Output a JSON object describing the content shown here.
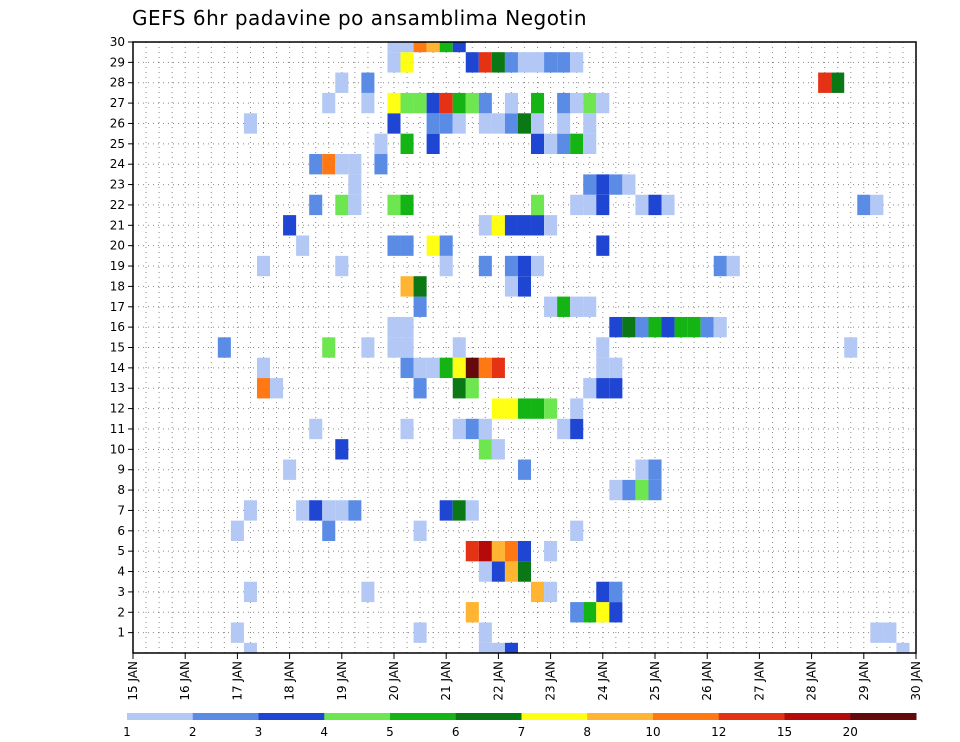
{
  "chart_data": {
    "type": "heatmap",
    "title": "GEFS 6hr padavine po ansamblima Negotin",
    "y_ticks": [
      "1",
      "2",
      "3",
      "4",
      "5",
      "6",
      "7",
      "8",
      "9",
      "10",
      "11",
      "12",
      "13",
      "14",
      "15",
      "16",
      "17",
      "18",
      "19",
      "20",
      "21",
      "22",
      "23",
      "24",
      "25",
      "26",
      "27",
      "28",
      "29",
      "30"
    ],
    "x_ticks": [
      "15 JAN",
      "16 JAN",
      "17 JAN",
      "18 JAN",
      "19 JAN",
      "20 JAN",
      "21 JAN",
      "22 JAN",
      "23 JAN",
      "24 JAN",
      "25 JAN",
      "26 JAN",
      "27 JAN",
      "28 JAN",
      "29 JAN",
      "30 JAN"
    ],
    "x_range_days": [
      15,
      30
    ],
    "y_range": [
      0,
      30
    ],
    "grid": true,
    "colorbar": {
      "labels": [
        "1",
        "2",
        "3",
        "4",
        "5",
        "6",
        "7",
        "8",
        "10",
        "12",
        "15",
        "20"
      ],
      "colors": [
        "#b4c8f5",
        "#5a8ce6",
        "#1e46d2",
        "#6ee650",
        "#14b414",
        "#0a7814",
        "#ffff14",
        "#ffb432",
        "#ff7814",
        "#e63214",
        "#b40a0a",
        "#640a0a"
      ]
    },
    "cells": [
      {
        "m": 1,
        "d": 17.0,
        "c": 1
      },
      {
        "m": 1,
        "d": 20.5,
        "c": 1
      },
      {
        "m": 1,
        "d": 21.75,
        "c": 1
      },
      {
        "m": 1,
        "d": 29.25,
        "c": 1
      },
      {
        "m": 1,
        "d": 29.5,
        "c": 1
      },
      {
        "m": 2,
        "d": 21.5,
        "c": 8
      },
      {
        "m": 2,
        "d": 23.5,
        "c": 2
      },
      {
        "m": 2,
        "d": 23.75,
        "c": 5
      },
      {
        "m": 2,
        "d": 24.0,
        "c": 7
      },
      {
        "m": 2,
        "d": 24.25,
        "c": 3
      },
      {
        "m": 3,
        "d": 17.25,
        "c": 1
      },
      {
        "m": 3,
        "d": 19.5,
        "c": 1
      },
      {
        "m": 3,
        "d": 22.75,
        "c": 8
      },
      {
        "m": 3,
        "d": 23.0,
        "c": 1
      },
      {
        "m": 3,
        "d": 24.0,
        "c": 3
      },
      {
        "m": 3,
        "d": 24.25,
        "c": 2
      },
      {
        "m": 4,
        "d": 21.75,
        "c": 1
      },
      {
        "m": 4,
        "d": 22.0,
        "c": 3
      },
      {
        "m": 4,
        "d": 22.25,
        "c": 8
      },
      {
        "m": 4,
        "d": 22.5,
        "c": 6
      },
      {
        "m": 5,
        "d": 21.5,
        "c": 10
      },
      {
        "m": 5,
        "d": 21.75,
        "c": 11
      },
      {
        "m": 5,
        "d": 22.0,
        "c": 8
      },
      {
        "m": 5,
        "d": 22.25,
        "c": 9
      },
      {
        "m": 5,
        "d": 22.5,
        "c": 3
      },
      {
        "m": 5,
        "d": 23.0,
        "c": 1
      },
      {
        "m": 6,
        "d": 17.0,
        "c": 1
      },
      {
        "m": 6,
        "d": 18.75,
        "c": 2
      },
      {
        "m": 6,
        "d": 20.5,
        "c": 1
      },
      {
        "m": 6,
        "d": 23.5,
        "c": 1
      },
      {
        "m": 7,
        "d": 17.25,
        "c": 1
      },
      {
        "m": 7,
        "d": 18.25,
        "c": 1
      },
      {
        "m": 7,
        "d": 18.5,
        "c": 3
      },
      {
        "m": 7,
        "d": 18.75,
        "c": 1
      },
      {
        "m": 7,
        "d": 19.0,
        "c": 1
      },
      {
        "m": 7,
        "d": 19.25,
        "c": 2
      },
      {
        "m": 7,
        "d": 21.0,
        "c": 3
      },
      {
        "m": 7,
        "d": 21.25,
        "c": 6
      },
      {
        "m": 7,
        "d": 21.5,
        "c": 1
      },
      {
        "m": 8,
        "d": 24.25,
        "c": 1
      },
      {
        "m": 8,
        "d": 24.5,
        "c": 2
      },
      {
        "m": 8,
        "d": 24.75,
        "c": 4
      },
      {
        "m": 8,
        "d": 25.0,
        "c": 2
      },
      {
        "m": 9,
        "d": 18.0,
        "c": 1
      },
      {
        "m": 9,
        "d": 22.5,
        "c": 2
      },
      {
        "m": 9,
        "d": 24.75,
        "c": 1
      },
      {
        "m": 9,
        "d": 25.0,
        "c": 2
      },
      {
        "m": 10,
        "d": 19.0,
        "c": 3
      },
      {
        "m": 10,
        "d": 21.75,
        "c": 4
      },
      {
        "m": 10,
        "d": 22.0,
        "c": 1
      },
      {
        "m": 11,
        "d": 18.5,
        "c": 1
      },
      {
        "m": 11,
        "d": 20.25,
        "c": 1
      },
      {
        "m": 11,
        "d": 21.25,
        "c": 1
      },
      {
        "m": 11,
        "d": 21.5,
        "c": 2
      },
      {
        "m": 11,
        "d": 21.75,
        "c": 1
      },
      {
        "m": 11,
        "d": 23.25,
        "c": 1
      },
      {
        "m": 11,
        "d": 23.5,
        "c": 3
      },
      {
        "m": 12,
        "d": 22.0,
        "c": 7
      },
      {
        "m": 12,
        "d": 22.25,
        "c": 7
      },
      {
        "m": 12,
        "d": 22.5,
        "c": 5
      },
      {
        "m": 12,
        "d": 22.75,
        "c": 5
      },
      {
        "m": 12,
        "d": 23.0,
        "c": 4
      },
      {
        "m": 12,
        "d": 23.5,
        "c": 1
      },
      {
        "m": 13,
        "d": 17.5,
        "c": 9
      },
      {
        "m": 13,
        "d": 17.75,
        "c": 1
      },
      {
        "m": 13,
        "d": 20.5,
        "c": 2
      },
      {
        "m": 13,
        "d": 21.25,
        "c": 6
      },
      {
        "m": 13,
        "d": 21.5,
        "c": 4
      },
      {
        "m": 13,
        "d": 23.75,
        "c": 1
      },
      {
        "m": 13,
        "d": 24.0,
        "c": 3
      },
      {
        "m": 13,
        "d": 24.25,
        "c": 3
      },
      {
        "m": 14,
        "d": 17.5,
        "c": 1
      },
      {
        "m": 14,
        "d": 20.25,
        "c": 2
      },
      {
        "m": 14,
        "d": 20.5,
        "c": 1
      },
      {
        "m": 14,
        "d": 20.75,
        "c": 1
      },
      {
        "m": 14,
        "d": 21.0,
        "c": 5
      },
      {
        "m": 14,
        "d": 21.25,
        "c": 7
      },
      {
        "m": 14,
        "d": 21.5,
        "c": 12
      },
      {
        "m": 14,
        "d": 21.75,
        "c": 9
      },
      {
        "m": 14,
        "d": 22.0,
        "c": 10
      },
      {
        "m": 14,
        "d": 24.0,
        "c": 1
      },
      {
        "m": 14,
        "d": 24.25,
        "c": 1
      },
      {
        "m": 15,
        "d": 16.75,
        "c": 2
      },
      {
        "m": 15,
        "d": 19.5,
        "c": 1
      },
      {
        "m": 15,
        "d": 28.75,
        "c": 1
      },
      {
        "m": 15,
        "d": 18.75,
        "c": 4
      },
      {
        "m": 15,
        "d": 20.0,
        "c": 1
      },
      {
        "m": 15,
        "d": 20.25,
        "c": 1
      },
      {
        "m": 15,
        "d": 21.25,
        "c": 1
      },
      {
        "m": 15,
        "d": 24.0,
        "c": 1
      },
      {
        "m": 16,
        "d": 24.25,
        "c": 3
      },
      {
        "m": 16,
        "d": 24.5,
        "c": 6
      },
      {
        "m": 16,
        "d": 24.75,
        "c": 2
      },
      {
        "m": 16,
        "d": 25.0,
        "c": 5
      },
      {
        "m": 16,
        "d": 25.25,
        "c": 3
      },
      {
        "m": 16,
        "d": 25.5,
        "c": 5
      },
      {
        "m": 16,
        "d": 25.75,
        "c": 5
      },
      {
        "m": 16,
        "d": 26.0,
        "c": 2
      },
      {
        "m": 16,
        "d": 26.25,
        "c": 1
      },
      {
        "m": 16,
        "d": 20.0,
        "c": 1
      },
      {
        "m": 16,
        "d": 20.25,
        "c": 1
      },
      {
        "m": 17,
        "d": 20.5,
        "c": 2
      },
      {
        "m": 17,
        "d": 23.0,
        "c": 1
      },
      {
        "m": 17,
        "d": 23.25,
        "c": 5
      },
      {
        "m": 17,
        "d": 23.5,
        "c": 1
      },
      {
        "m": 17,
        "d": 23.75,
        "c": 1
      },
      {
        "m": 18,
        "d": 20.25,
        "c": 8
      },
      {
        "m": 18,
        "d": 20.5,
        "c": 6
      },
      {
        "m": 18,
        "d": 22.25,
        "c": 1
      },
      {
        "m": 18,
        "d": 22.5,
        "c": 3
      },
      {
        "m": 19,
        "d": 17.5,
        "c": 1
      },
      {
        "m": 19,
        "d": 19.0,
        "c": 1
      },
      {
        "m": 19,
        "d": 21.0,
        "c": 1
      },
      {
        "m": 19,
        "d": 21.75,
        "c": 2
      },
      {
        "m": 19,
        "d": 22.25,
        "c": 2
      },
      {
        "m": 19,
        "d": 22.5,
        "c": 3
      },
      {
        "m": 19,
        "d": 22.75,
        "c": 1
      },
      {
        "m": 19,
        "d": 26.25,
        "c": 2
      },
      {
        "m": 19,
        "d": 26.5,
        "c": 1
      },
      {
        "m": 20,
        "d": 18.25,
        "c": 1
      },
      {
        "m": 20,
        "d": 20.0,
        "c": 2
      },
      {
        "m": 20,
        "d": 20.25,
        "c": 2
      },
      {
        "m": 20,
        "d": 20.75,
        "c": 7
      },
      {
        "m": 20,
        "d": 21.0,
        "c": 2
      },
      {
        "m": 20,
        "d": 24.0,
        "c": 3
      },
      {
        "m": 21,
        "d": 18.0,
        "c": 3
      },
      {
        "m": 21,
        "d": 21.75,
        "c": 1
      },
      {
        "m": 21,
        "d": 22.0,
        "c": 7
      },
      {
        "m": 21,
        "d": 22.25,
        "c": 3
      },
      {
        "m": 21,
        "d": 22.5,
        "c": 3
      },
      {
        "m": 21,
        "d": 22.75,
        "c": 3
      },
      {
        "m": 21,
        "d": 23.0,
        "c": 1
      },
      {
        "m": 22,
        "d": 18.5,
        "c": 2
      },
      {
        "m": 22,
        "d": 19.0,
        "c": 4
      },
      {
        "m": 22,
        "d": 19.25,
        "c": 1
      },
      {
        "m": 22,
        "d": 20.0,
        "c": 4
      },
      {
        "m": 22,
        "d": 20.25,
        "c": 5
      },
      {
        "m": 22,
        "d": 22.75,
        "c": 4
      },
      {
        "m": 22,
        "d": 23.5,
        "c": 1
      },
      {
        "m": 22,
        "d": 23.75,
        "c": 1
      },
      {
        "m": 22,
        "d": 24.0,
        "c": 3
      },
      {
        "m": 22,
        "d": 24.75,
        "c": 1
      },
      {
        "m": 22,
        "d": 25.0,
        "c": 3
      },
      {
        "m": 22,
        "d": 25.25,
        "c": 1
      },
      {
        "m": 22,
        "d": 29.0,
        "c": 2
      },
      {
        "m": 22,
        "d": 29.25,
        "c": 1
      },
      {
        "m": 23,
        "d": 19.25,
        "c": 1
      },
      {
        "m": 23,
        "d": 23.75,
        "c": 2
      },
      {
        "m": 23,
        "d": 24.0,
        "c": 3
      },
      {
        "m": 23,
        "d": 24.25,
        "c": 2
      },
      {
        "m": 23,
        "d": 24.5,
        "c": 1
      },
      {
        "m": 24,
        "d": 18.5,
        "c": 2
      },
      {
        "m": 24,
        "d": 18.75,
        "c": 9
      },
      {
        "m": 24,
        "d": 19.0,
        "c": 1
      },
      {
        "m": 24,
        "d": 19.25,
        "c": 1
      },
      {
        "m": 24,
        "d": 19.75,
        "c": 2
      },
      {
        "m": 25,
        "d": 19.75,
        "c": 1
      },
      {
        "m": 25,
        "d": 20.25,
        "c": 5
      },
      {
        "m": 25,
        "d": 20.75,
        "c": 3
      },
      {
        "m": 25,
        "d": 22.75,
        "c": 3
      },
      {
        "m": 25,
        "d": 23.0,
        "c": 1
      },
      {
        "m": 25,
        "d": 23.25,
        "c": 2
      },
      {
        "m": 25,
        "d": 23.5,
        "c": 5
      },
      {
        "m": 25,
        "d": 23.75,
        "c": 1
      },
      {
        "m": 26,
        "d": 17.25,
        "c": 1
      },
      {
        "m": 26,
        "d": 20.0,
        "c": 3
      },
      {
        "m": 26,
        "d": 20.75,
        "c": 2
      },
      {
        "m": 26,
        "d": 21.0,
        "c": 2
      },
      {
        "m": 26,
        "d": 21.25,
        "c": 1
      },
      {
        "m": 26,
        "d": 21.75,
        "c": 1
      },
      {
        "m": 26,
        "d": 22.0,
        "c": 1
      },
      {
        "m": 26,
        "d": 22.25,
        "c": 2
      },
      {
        "m": 26,
        "d": 22.5,
        "c": 6
      },
      {
        "m": 26,
        "d": 22.75,
        "c": 1
      },
      {
        "m": 26,
        "d": 23.25,
        "c": 1
      },
      {
        "m": 26,
        "d": 23.75,
        "c": 1
      },
      {
        "m": 27,
        "d": 18.75,
        "c": 1
      },
      {
        "m": 27,
        "d": 19.5,
        "c": 1
      },
      {
        "m": 27,
        "d": 20.0,
        "c": 7
      },
      {
        "m": 27,
        "d": 20.25,
        "c": 4
      },
      {
        "m": 27,
        "d": 20.5,
        "c": 4
      },
      {
        "m": 27,
        "d": 20.75,
        "c": 3
      },
      {
        "m": 27,
        "d": 21.0,
        "c": 10
      },
      {
        "m": 27,
        "d": 21.25,
        "c": 5
      },
      {
        "m": 27,
        "d": 21.5,
        "c": 4
      },
      {
        "m": 27,
        "d": 21.75,
        "c": 2
      },
      {
        "m": 27,
        "d": 22.25,
        "c": 1
      },
      {
        "m": 27,
        "d": 22.75,
        "c": 5
      },
      {
        "m": 27,
        "d": 23.25,
        "c": 2
      },
      {
        "m": 27,
        "d": 23.5,
        "c": 1
      },
      {
        "m": 27,
        "d": 23.75,
        "c": 4
      },
      {
        "m": 27,
        "d": 24.0,
        "c": 1
      },
      {
        "m": 28,
        "d": 19.0,
        "c": 1
      },
      {
        "m": 28,
        "d": 19.5,
        "c": 2
      },
      {
        "m": 28,
        "d": 28.25,
        "c": 10
      },
      {
        "m": 28,
        "d": 28.5,
        "c": 6
      },
      {
        "m": 29,
        "d": 20.0,
        "c": 1
      },
      {
        "m": 29,
        "d": 20.25,
        "c": 7
      },
      {
        "m": 29,
        "d": 21.5,
        "c": 3
      },
      {
        "m": 29,
        "d": 21.75,
        "c": 10
      },
      {
        "m": 29,
        "d": 22.0,
        "c": 6
      },
      {
        "m": 29,
        "d": 22.25,
        "c": 2
      },
      {
        "m": 29,
        "d": 22.5,
        "c": 1
      },
      {
        "m": 29,
        "d": 22.75,
        "c": 1
      },
      {
        "m": 29,
        "d": 23.0,
        "c": 2
      },
      {
        "m": 29,
        "d": 23.25,
        "c": 2
      },
      {
        "m": 29,
        "d": 23.5,
        "c": 1
      },
      {
        "m": 30,
        "d": 20.0,
        "c": 1
      },
      {
        "m": 30,
        "d": 20.25,
        "c": 1
      },
      {
        "m": 30,
        "d": 20.5,
        "c": 9
      },
      {
        "m": 30,
        "d": 20.75,
        "c": 8
      },
      {
        "m": 30,
        "d": 21.0,
        "c": 5
      },
      {
        "m": 30,
        "d": 21.25,
        "c": 3
      },
      {
        "m": 0,
        "d": 17.25,
        "c": 1
      },
      {
        "m": 0,
        "d": 21.75,
        "c": 1
      },
      {
        "m": 0,
        "d": 22.0,
        "c": 1
      },
      {
        "m": 0,
        "d": 22.25,
        "c": 3
      },
      {
        "m": 0,
        "d": 29.75,
        "c": 1
      }
    ]
  }
}
